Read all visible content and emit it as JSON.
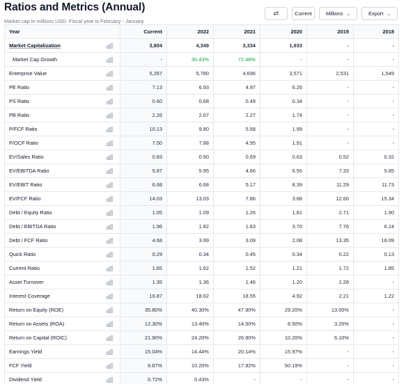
{
  "header": {
    "title": "Ratios and Metrics (Annual)",
    "subtitle": "Market cap in millions USD. Fiscal year is February - January."
  },
  "controls": {
    "swap_icon": "⇄",
    "current_label": "Current",
    "millions_label": "Millions",
    "export_label": "Export",
    "chevron": "⌄"
  },
  "columns": [
    "Year",
    "Current",
    "2022",
    "2021",
    "2020",
    "2019",
    "2018"
  ],
  "rows": [
    {
      "label": "Market Capitalization",
      "style": "bold",
      "values": [
        "3,804",
        "4,349",
        "3,334",
        "1,933",
        "-",
        "-"
      ]
    },
    {
      "label": "Market Cap Growth",
      "style": "indent",
      "values": [
        "-",
        "30.43%",
        "72.48%",
        "-",
        "-",
        "-"
      ]
    },
    {
      "label": "Enterprise Value",
      "values": [
        "5,267",
        "5,780",
        "4,696",
        "3,571",
        "2,531",
        "1,549"
      ]
    },
    {
      "label": "PE Ratio",
      "values": [
        "7.13",
        "6.93",
        "4.97",
        "6.26",
        "-",
        "-"
      ]
    },
    {
      "label": "PS Ratio",
      "values": [
        "0.60",
        "0.68",
        "0.49",
        "0.34",
        "-",
        "-"
      ]
    },
    {
      "label": "PB Ratio",
      "values": [
        "2.26",
        "2.67",
        "2.27",
        "1.74",
        "-",
        "-"
      ]
    },
    {
      "label": "P/FCF Ratio",
      "values": [
        "10.13",
        "9.80",
        "5.58",
        "1.99",
        "-",
        "-"
      ]
    },
    {
      "label": "P/OCF Ratio",
      "values": [
        "7.50",
        "7.88",
        "4.95",
        "1.91",
        "-",
        "-"
      ]
    },
    {
      "label": "EV/Sales Ratio",
      "values": [
        "0.83",
        "0.90",
        "0.69",
        "0.63",
        "0.52",
        "0.32"
      ]
    },
    {
      "label": "EV/EBITDA Ratio",
      "values": [
        "5.87",
        "5.95",
        "4.66",
        "6.55",
        "7.33",
        "5.85"
      ]
    },
    {
      "label": "EV/EBIT Ratio",
      "values": [
        "6.68",
        "6.68",
        "5.17",
        "8.39",
        "11.29",
        "11.73"
      ]
    },
    {
      "label": "EV/FCF Ratio",
      "values": [
        "14.03",
        "13.03",
        "7.86",
        "3.68",
        "12.60",
        "15.34"
      ]
    },
    {
      "label": "Debt / Equity Ratio",
      "values": [
        "1.05",
        "1.09",
        "1.26",
        "1.81",
        "2.71",
        "1.90"
      ]
    },
    {
      "label": "Debt / EBITDA Ratio",
      "values": [
        "1.96",
        "1.82",
        "1.83",
        "3.70",
        "7.76",
        "6.14"
      ]
    },
    {
      "label": "Debt / FCF Ratio",
      "values": [
        "4.68",
        "3.99",
        "3.09",
        "2.08",
        "13.35",
        "16.09"
      ]
    },
    {
      "label": "Quick Ratio",
      "values": [
        "0.29",
        "0.34",
        "0.45",
        "0.34",
        "0.22",
        "0.13"
      ]
    },
    {
      "label": "Current Ratio",
      "values": [
        "1.65",
        "1.62",
        "1.52",
        "1.21",
        "1.72",
        "1.85"
      ]
    },
    {
      "label": "Asset Turnover",
      "values": [
        "1.35",
        "1.36",
        "1.46",
        "1.20",
        "1.28",
        "-"
      ]
    },
    {
      "label": "Interest Coverage",
      "values": [
        "16.87",
        "18.62",
        "18.55",
        "4.92",
        "2.21",
        "1.22"
      ]
    },
    {
      "label": "Return on Equity (ROE)",
      "values": [
        "35.80%",
        "40.30%",
        "47.90%",
        "29.20%",
        "13.00%",
        "-"
      ]
    },
    {
      "label": "Return on Assets (ROA)",
      "values": [
        "12.30%",
        "13.40%",
        "14.50%",
        "6.50%",
        "3.20%",
        "-"
      ]
    },
    {
      "label": "Return on Capital (ROIC)",
      "values": [
        "21.90%",
        "24.20%",
        "26.90%",
        "10.20%",
        "6.10%",
        "-"
      ]
    },
    {
      "label": "Earnings Yield",
      "values": [
        "15.04%",
        "14.44%",
        "20.14%",
        "15.97%",
        "-",
        "-"
      ]
    },
    {
      "label": "FCF Yield",
      "values": [
        "9.87%",
        "10.20%",
        "17.92%",
        "50.19%",
        "-",
        "-"
      ]
    },
    {
      "label": "Dividend Yield",
      "values": [
        "0.72%",
        "0.43%",
        "-",
        "-",
        "-",
        "-"
      ]
    }
  ],
  "icons": {
    "row_chart": "bar-chart-icon"
  },
  "colors": {
    "growth_positive": "#16a34a",
    "header_bg": "#f9fafb",
    "border": "#e5e7eb"
  }
}
